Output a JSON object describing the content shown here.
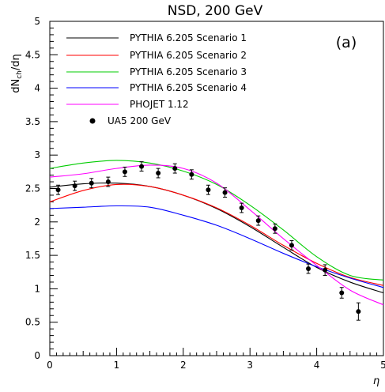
{
  "chart_data": {
    "type": "line",
    "title": "NSD, 200 GeV",
    "xlabel": "η",
    "ylabel": "dN_ch/dη",
    "ylabel_parts": {
      "main": "dN",
      "sub": "ch",
      "tail": "/dη"
    },
    "annotation": "(a)",
    "xlim": [
      0,
      5
    ],
    "ylim": [
      0,
      5
    ],
    "x_ticks": [
      "0",
      "1",
      "2",
      "3",
      "4",
      "5"
    ],
    "y_ticks": [
      "0",
      "0.5",
      "1",
      "1.5",
      "2",
      "2.5",
      "3",
      "3.5",
      "4",
      "4.5",
      "5"
    ],
    "grid": false,
    "legend_position": "top-left",
    "series": [
      {
        "name": "PYTHIA 6.205  Scenario 1",
        "color": "#000000",
        "x": [
          0,
          0.5,
          1,
          1.5,
          2,
          2.5,
          3,
          3.5,
          4,
          4.5,
          5
        ],
        "y": [
          2.52,
          2.57,
          2.58,
          2.53,
          2.4,
          2.2,
          1.93,
          1.62,
          1.32,
          1.1,
          0.94
        ]
      },
      {
        "name": "PYTHIA 6.205  Scenario 2",
        "color": "#ff0000",
        "x": [
          0,
          0.5,
          1,
          1.5,
          2,
          2.5,
          3,
          3.5,
          4,
          4.5,
          5
        ],
        "y": [
          2.3,
          2.47,
          2.56,
          2.53,
          2.4,
          2.21,
          1.95,
          1.65,
          1.38,
          1.17,
          1.05
        ]
      },
      {
        "name": "PYTHIA 6.205  Scenario 3",
        "color": "#00cc00",
        "x": [
          0,
          0.5,
          1,
          1.5,
          2,
          2.5,
          3,
          3.5,
          4,
          4.5,
          5
        ],
        "y": [
          2.8,
          2.88,
          2.92,
          2.88,
          2.76,
          2.56,
          2.25,
          1.88,
          1.48,
          1.2,
          1.13
        ]
      },
      {
        "name": "PYTHIA 6.205  Scenario 4",
        "color": "#0000ff",
        "x": [
          0,
          0.5,
          1,
          1.5,
          2,
          2.5,
          3,
          3.5,
          4,
          4.5,
          5
        ],
        "y": [
          2.2,
          2.22,
          2.24,
          2.22,
          2.1,
          1.95,
          1.75,
          1.53,
          1.33,
          1.16,
          1.02
        ]
      },
      {
        "name": "PHOJET 1.12",
        "color": "#ff00ff",
        "x": [
          0,
          0.5,
          1,
          1.5,
          2,
          2.5,
          3,
          3.5,
          4,
          4.5,
          5
        ],
        "y": [
          2.67,
          2.72,
          2.8,
          2.85,
          2.8,
          2.58,
          2.18,
          1.75,
          1.35,
          0.98,
          0.76
        ]
      }
    ],
    "points": {
      "name": "UA5 200 GeV",
      "color": "#000000",
      "x": [
        0.125,
        0.375,
        0.625,
        0.875,
        1.125,
        1.375,
        1.625,
        1.875,
        2.125,
        2.375,
        2.625,
        2.875,
        3.125,
        3.375,
        3.625,
        3.875,
        4.125,
        4.375,
        4.625
      ],
      "y": [
        2.48,
        2.54,
        2.58,
        2.6,
        2.75,
        2.83,
        2.73,
        2.8,
        2.71,
        2.48,
        2.44,
        2.21,
        2.02,
        1.9,
        1.65,
        1.3,
        1.28,
        0.94,
        0.66
      ],
      "err": [
        0.07,
        0.07,
        0.07,
        0.07,
        0.07,
        0.07,
        0.07,
        0.07,
        0.07,
        0.07,
        0.07,
        0.07,
        0.07,
        0.07,
        0.07,
        0.07,
        0.08,
        0.08,
        0.13
      ]
    }
  }
}
